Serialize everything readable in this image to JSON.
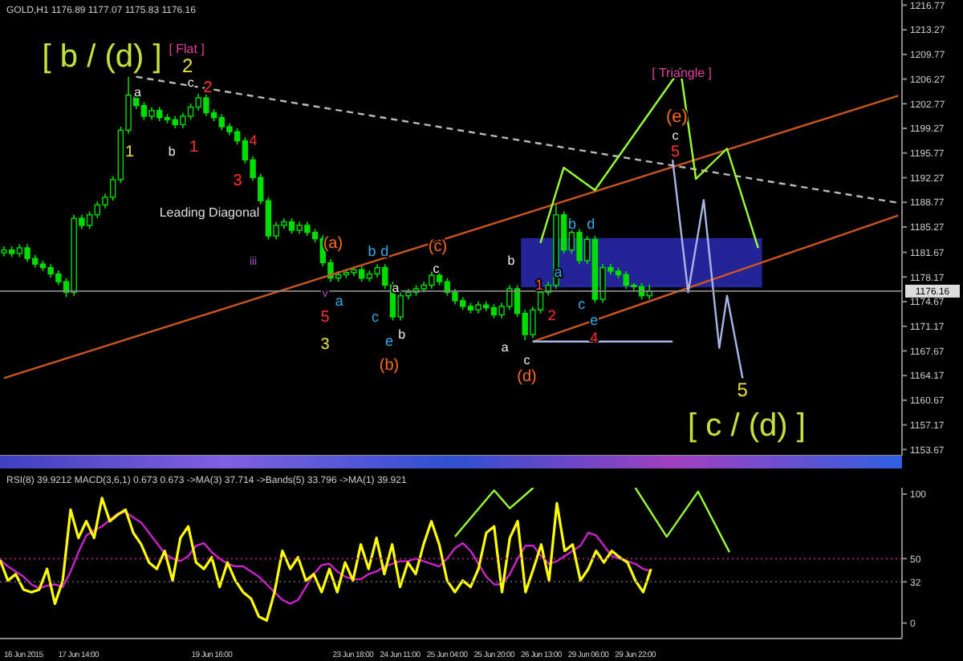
{
  "chart_data": [
    {
      "type": "candlestick",
      "title": "GOLD,H1 1176.89 1177.07 1175.83 1176.16",
      "color": "#00dd00",
      "tick_labels": "y",
      "categories": [
        null,
        null,
        null,
        null,
        null,
        null,
        null,
        null,
        null,
        null,
        null,
        null,
        null,
        null,
        null,
        null,
        null,
        null,
        null,
        null,
        null,
        null,
        null,
        null,
        null,
        null,
        null,
        null,
        null,
        null,
        null,
        null,
        null,
        null,
        null,
        null,
        null,
        null,
        null,
        null,
        null,
        null,
        null,
        null,
        null,
        null,
        null,
        null,
        null,
        null,
        null,
        null,
        null,
        null,
        null,
        null,
        null,
        null,
        null,
        null,
        null,
        null,
        null,
        null,
        null,
        null,
        null,
        null,
        null,
        null,
        null,
        null,
        null,
        null,
        null,
        null,
        null,
        null,
        null,
        null,
        null,
        null,
        null,
        null,
        null,
        null,
        null,
        null,
        null,
        null,
        null,
        null,
        null,
        null,
        null,
        null,
        null,
        null,
        null,
        null,
        null,
        null,
        null,
        null,
        null,
        null,
        null,
        null,
        null,
        null,
        null,
        null,
        null,
        null,
        null,
        null
      ],
      "ohlc": [
        [
          1181.6,
          1182.5,
          1181.1,
          1182.0
        ],
        [
          1182.0,
          1182.5,
          1181.0,
          1181.5
        ],
        [
          1181.5,
          1182.8,
          1181.0,
          1182.3
        ],
        [
          1182.3,
          1182.8,
          1180.3,
          1180.8
        ],
        [
          1180.8,
          1181.3,
          1179.5,
          1180.0
        ],
        [
          1180.0,
          1180.5,
          1179.0,
          1179.5
        ],
        [
          1179.5,
          1180.0,
          1178.1,
          1178.6
        ],
        [
          1178.6,
          1179.1,
          1177.0,
          1177.5
        ],
        [
          1177.5,
          1178.0,
          1175.3,
          1176.0
        ],
        [
          1176.0,
          1187.0,
          1175.5,
          1186.5
        ],
        [
          1186.5,
          1187.0,
          1185.0,
          1185.5
        ],
        [
          1185.5,
          1187.5,
          1185.0,
          1187.0
        ],
        [
          1187.0,
          1188.9,
          1186.5,
          1188.4
        ],
        [
          1188.4,
          1190.0,
          1187.9,
          1189.5
        ],
        [
          1189.5,
          1192.5,
          1189.0,
          1192.0
        ],
        [
          1192.0,
          1199.5,
          1191.5,
          1199.0
        ],
        [
          1199.0,
          1206.6,
          1198.5,
          1204.0
        ],
        [
          1204.0,
          1204.5,
          1202.0,
          1202.5
        ],
        [
          1202.5,
          1203.0,
          1200.5,
          1201.0
        ],
        [
          1201.0,
          1202.3,
          1200.5,
          1201.8
        ],
        [
          1201.8,
          1202.3,
          1200.3,
          1200.8
        ],
        [
          1200.8,
          1201.3,
          1200.0,
          1200.5
        ],
        [
          1200.5,
          1201.0,
          1199.3,
          1199.8
        ],
        [
          1199.8,
          1201.5,
          1199.3,
          1201.0
        ],
        [
          1201.0,
          1202.8,
          1200.5,
          1202.3
        ],
        [
          1202.3,
          1204.2,
          1201.8,
          1203.6
        ],
        [
          1203.6,
          1204.1,
          1201.0,
          1201.5
        ],
        [
          1201.5,
          1202.0,
          1200.3,
          1200.8
        ],
        [
          1200.8,
          1201.3,
          1199.0,
          1199.5
        ],
        [
          1199.5,
          1200.0,
          1198.3,
          1198.8
        ],
        [
          1198.8,
          1199.3,
          1197.0,
          1197.5
        ],
        [
          1197.5,
          1198.0,
          1194.3,
          1194.8
        ],
        [
          1194.8,
          1195.3,
          1191.8,
          1192.3
        ],
        [
          1192.3,
          1192.8,
          1188.5,
          1189.0
        ],
        [
          1189.0,
          1189.5,
          1183.5,
          1184.0
        ],
        [
          1184.0,
          1186.0,
          1183.5,
          1185.5
        ],
        [
          1185.5,
          1186.5,
          1185.0,
          1186.0
        ],
        [
          1186.0,
          1186.5,
          1184.3,
          1184.8
        ],
        [
          1184.8,
          1186.0,
          1184.3,
          1185.5
        ],
        [
          1185.5,
          1186.0,
          1184.0,
          1184.5
        ],
        [
          1184.5,
          1185.0,
          1183.1,
          1183.6
        ],
        [
          1183.6,
          1184.1,
          1179.7,
          1180.2
        ],
        [
          1180.2,
          1180.7,
          1177.5,
          1178.0
        ],
        [
          1178.0,
          1179.0,
          1177.5,
          1178.5
        ],
        [
          1178.5,
          1179.3,
          1178.0,
          1178.8
        ],
        [
          1178.8,
          1179.7,
          1178.3,
          1179.2
        ],
        [
          1179.2,
          1179.7,
          1177.5,
          1178.0
        ],
        [
          1178.0,
          1179.1,
          1177.5,
          1178.6
        ],
        [
          1178.6,
          1180.0,
          1178.1,
          1179.5
        ],
        [
          1179.5,
          1180.0,
          1176.5,
          1177.0
        ],
        [
          1177.0,
          1177.5,
          1172.0,
          1172.5
        ],
        [
          1172.5,
          1176.0,
          1172.0,
          1175.5
        ],
        [
          1175.5,
          1176.5,
          1175.0,
          1176.0
        ],
        [
          1176.0,
          1177.0,
          1175.5,
          1176.5
        ],
        [
          1176.5,
          1177.5,
          1176.0,
          1177.0
        ],
        [
          1177.0,
          1178.9,
          1176.5,
          1178.4
        ],
        [
          1178.4,
          1178.9,
          1177.0,
          1177.5
        ],
        [
          1177.5,
          1178.0,
          1175.5,
          1176.0
        ],
        [
          1176.0,
          1176.5,
          1174.3,
          1174.8
        ],
        [
          1174.8,
          1175.3,
          1173.5,
          1174.0
        ],
        [
          1174.0,
          1174.5,
          1173.0,
          1173.5
        ],
        [
          1173.5,
          1174.7,
          1173.0,
          1174.2
        ],
        [
          1174.2,
          1174.7,
          1173.3,
          1173.8
        ],
        [
          1173.8,
          1174.3,
          1172.3,
          1172.8
        ],
        [
          1172.8,
          1174.5,
          1172.3,
          1174.0
        ],
        [
          1174.0,
          1177.0,
          1173.5,
          1176.5
        ],
        [
          1176.5,
          1177.0,
          1172.5,
          1173.0
        ],
        [
          1173.0,
          1173.5,
          1169.2,
          1170.0
        ],
        [
          1170.0,
          1174.0,
          1169.5,
          1173.5
        ],
        [
          1173.5,
          1176.5,
          1173.0,
          1176.0
        ],
        [
          1176.0,
          1177.5,
          1175.5,
          1177.0
        ],
        [
          1177.0,
          1188.4,
          1176.5,
          1187.0
        ],
        [
          1187.0,
          1187.5,
          1181.5,
          1182.0
        ],
        [
          1182.0,
          1185.0,
          1181.5,
          1184.5
        ],
        [
          1184.5,
          1185.0,
          1180.0,
          1180.5
        ],
        [
          1180.5,
          1184.0,
          1180.0,
          1183.5
        ],
        [
          1183.5,
          1184.0,
          1174.5,
          1175.0
        ],
        [
          1175.0,
          1180.0,
          1174.5,
          1179.5
        ],
        [
          1179.5,
          1180.0,
          1178.5,
          1179.0
        ],
        [
          1179.0,
          1179.5,
          1178.0,
          1178.5
        ],
        [
          1178.5,
          1179.0,
          1176.5,
          1177.0
        ],
        [
          1177.0,
          1177.3,
          1176.3,
          1176.8
        ],
        [
          1176.8,
          1177.3,
          1175.0,
          1175.5
        ],
        [
          1175.5,
          1177.1,
          1175.0,
          1176.16
        ],
        null,
        null,
        null,
        null,
        null,
        null,
        null,
        null,
        null,
        null,
        null,
        null,
        null,
        null,
        null,
        null,
        null,
        null,
        null,
        null,
        null,
        null,
        null,
        null,
        null,
        null,
        null,
        null,
        null,
        null,
        null,
        null
      ],
      "series": [
        {
          "type": "line",
          "color": "#cc5522",
          "values": [
            1163.8,
            null,
            null,
            null,
            null,
            null,
            null,
            null,
            null,
            null,
            null,
            null,
            null,
            null,
            null,
            null,
            null,
            null,
            null,
            null,
            null,
            null,
            null,
            null,
            null,
            null,
            null,
            null,
            null,
            null,
            null,
            null,
            null,
            null,
            null,
            null,
            null,
            null,
            null,
            null,
            null,
            null,
            null,
            null,
            null,
            null,
            null,
            null,
            null,
            null,
            null,
            null,
            null,
            null,
            null,
            null,
            null,
            null,
            null,
            null,
            null,
            null,
            null,
            null,
            null,
            null,
            null,
            null,
            null,
            null,
            null,
            null,
            null,
            null,
            null,
            null,
            null,
            null,
            null,
            null,
            null,
            null,
            null,
            null,
            null,
            null,
            null,
            null,
            null,
            null,
            null,
            null,
            null,
            null,
            null,
            null,
            null,
            null,
            null,
            null,
            null,
            null,
            null,
            null,
            null,
            null,
            null,
            null,
            null,
            null,
            null,
            null,
            null,
            null,
            null,
            1203.9
          ]
        },
        {
          "type": "line",
          "color": "#cc5522",
          "values": [
            null,
            null,
            null,
            null,
            null,
            null,
            null,
            null,
            null,
            null,
            null,
            null,
            null,
            null,
            null,
            null,
            null,
            null,
            null,
            null,
            null,
            null,
            null,
            null,
            null,
            null,
            null,
            null,
            null,
            null,
            null,
            null,
            null,
            null,
            null,
            null,
            null,
            null,
            null,
            null,
            null,
            null,
            null,
            null,
            null,
            null,
            null,
            null,
            null,
            null,
            null,
            null,
            null,
            null,
            null,
            null,
            null,
            null,
            null,
            null,
            null,
            null,
            null,
            null,
            null,
            null,
            null,
            null,
            1169.0,
            null,
            null,
            null,
            null,
            null,
            null,
            null,
            null,
            null,
            null,
            null,
            null,
            null,
            null,
            null,
            null,
            null,
            null,
            null,
            null,
            null,
            null,
            null,
            null,
            null,
            null,
            null,
            null,
            null,
            null,
            null,
            null,
            null,
            null,
            null,
            null,
            null,
            null,
            null,
            null,
            null,
            null,
            null,
            null,
            null,
            null,
            1186.9
          ]
        },
        {
          "type": "line",
          "color": "#bbbbbb",
          "line_style": "dashed",
          "values": [
            null,
            null,
            null,
            null,
            null,
            null,
            null,
            null,
            null,
            null,
            null,
            null,
            null,
            null,
            null,
            null,
            null,
            1206.6,
            null,
            null,
            null,
            null,
            null,
            null,
            null,
            null,
            null,
            null,
            null,
            null,
            null,
            null,
            null,
            null,
            null,
            null,
            null,
            null,
            null,
            null,
            null,
            null,
            null,
            null,
            null,
            null,
            null,
            null,
            null,
            null,
            null,
            null,
            null,
            null,
            null,
            null,
            null,
            null,
            null,
            null,
            null,
            null,
            null,
            null,
            null,
            null,
            null,
            null,
            null,
            null,
            null,
            null,
            null,
            null,
            null,
            null,
            null,
            null,
            null,
            null,
            null,
            null,
            null,
            null,
            null,
            null,
            null,
            null,
            null,
            null,
            null,
            null,
            null,
            null,
            null,
            null,
            null,
            null,
            null,
            null,
            null,
            null,
            null,
            null,
            null,
            null,
            null,
            null,
            null,
            null,
            null,
            null,
            null,
            null,
            null,
            1188.7
          ]
        },
        {
          "type": "line",
          "color": "#aab4e8",
          "values": [
            null,
            null,
            null,
            null,
            null,
            null,
            null,
            null,
            null,
            null,
            null,
            null,
            null,
            null,
            null,
            null,
            null,
            null,
            null,
            null,
            null,
            null,
            null,
            null,
            null,
            null,
            null,
            null,
            null,
            null,
            null,
            null,
            null,
            null,
            null,
            null,
            null,
            null,
            null,
            null,
            null,
            null,
            null,
            null,
            null,
            null,
            null,
            null,
            null,
            null,
            null,
            null,
            null,
            null,
            null,
            null,
            null,
            null,
            null,
            null,
            null,
            null,
            null,
            null,
            null,
            null,
            null,
            null,
            1169.0,
            null,
            null,
            null,
            null,
            null,
            null,
            null,
            null,
            null,
            null,
            null,
            null,
            null,
            null,
            null,
            null,
            null,
            1169.0,
            null,
            null,
            null,
            null,
            null,
            null,
            null,
            null,
            null,
            null,
            null,
            null,
            null,
            null,
            null,
            null,
            null,
            null,
            null,
            null,
            null,
            null,
            null,
            null,
            null,
            null,
            null,
            null,
            null
          ]
        },
        {
          "type": "line",
          "color": "#aab4e8",
          "values": [
            null,
            null,
            null,
            null,
            null,
            null,
            null,
            null,
            null,
            null,
            null,
            null,
            null,
            null,
            null,
            null,
            null,
            null,
            null,
            null,
            null,
            null,
            null,
            null,
            null,
            null,
            null,
            null,
            null,
            null,
            null,
            null,
            null,
            null,
            null,
            null,
            null,
            null,
            null,
            null,
            null,
            null,
            null,
            null,
            null,
            null,
            null,
            null,
            null,
            null,
            null,
            null,
            null,
            null,
            null,
            null,
            null,
            null,
            null,
            null,
            null,
            null,
            null,
            null,
            null,
            null,
            null,
            null,
            null,
            null,
            null,
            null,
            null,
            null,
            null,
            null,
            null,
            null,
            null,
            null,
            null,
            null,
            null,
            null,
            null,
            null,
            1194.8,
            null,
            1176.0,
            null,
            1189.1,
            null,
            1168.1,
            1175.5,
            null,
            1163.8,
            null,
            null,
            null,
            null,
            null,
            null,
            null,
            null,
            null,
            null,
            null,
            null,
            null,
            null,
            null,
            null,
            null,
            null,
            null,
            null
          ]
        },
        {
          "type": "line",
          "color": "#99ff33",
          "values": [
            null,
            null,
            null,
            null,
            null,
            null,
            null,
            null,
            null,
            null,
            null,
            null,
            null,
            null,
            null,
            null,
            null,
            null,
            null,
            null,
            null,
            null,
            null,
            null,
            null,
            null,
            null,
            null,
            null,
            null,
            null,
            null,
            null,
            null,
            null,
            null,
            null,
            null,
            null,
            null,
            null,
            null,
            null,
            null,
            null,
            null,
            null,
            null,
            null,
            null,
            null,
            null,
            null,
            null,
            null,
            null,
            null,
            null,
            null,
            null,
            null,
            null,
            null,
            null,
            null,
            null,
            null,
            null,
            null,
            1183.0,
            null,
            null,
            1193.7,
            null,
            null,
            null,
            1190.5,
            null,
            null,
            null,
            null,
            null,
            null,
            null,
            null,
            null,
            null,
            1207.7,
            null,
            1192.1,
            null,
            null,
            null,
            1196.4,
            null,
            null,
            null,
            1182.3,
            null,
            null,
            null,
            null,
            null,
            null,
            null,
            null,
            null,
            null,
            null,
            null,
            null,
            null,
            null,
            null,
            null,
            null
          ]
        }
      ],
      "ylim": [
        1152.8,
        1217.5
      ],
      "yticks": [
        1153.67,
        1157.17,
        1160.67,
        1164.17,
        1167.67,
        1171.17,
        1174.67,
        1178.17,
        1181.67,
        1185.27,
        1188.77,
        1192.27,
        1195.77,
        1199.27,
        1202.77,
        1206.27,
        1209.77,
        1213.27,
        1216.77
      ],
      "ref_lines": [
        {
          "axis": "y",
          "value": 1176.16,
          "label": "1176.16",
          "color": "#888888"
        }
      ],
      "bands": [
        {
          "axis": "y",
          "from": 1176.7,
          "to": 1183.7,
          "color": "#2a2ab0"
        }
      ],
      "annotations": [
        "[ b / (d) ]",
        "[ Flat ]",
        "[ Triangle ]",
        "Leading Diagonal",
        "[ c / (d) ]",
        "2",
        "c",
        "2",
        "a",
        "1",
        "b",
        "1",
        "4",
        "3",
        "(a)",
        "(c)",
        "b",
        "d",
        "a",
        "c",
        "e",
        "a",
        "b",
        "c",
        "5",
        "3",
        "(b)",
        "b",
        "a",
        "c",
        "(d)",
        "1",
        "2",
        "b",
        "d",
        "a",
        "c",
        "e",
        "4",
        "(e)",
        "c",
        "5",
        "5",
        "iii",
        "v"
      ]
    },
    {
      "type": "line",
      "title": "RSI(8) 39.9212 MACD(3,6,1) 0.673 0.673 ->MA(3) 37.714 ->Bands(5) 33.796 ->MA(1) 39.921",
      "categories": [
        null,
        null,
        null,
        "16 Jun 2015",
        null,
        null,
        null,
        null,
        null,
        null,
        "17 Jun 14:00",
        null,
        null,
        null,
        null,
        null,
        null,
        null,
        null,
        null,
        null,
        null,
        null,
        null,
        null,
        null,
        null,
        "19 Jun 16:00",
        null,
        null,
        null,
        null,
        null,
        null,
        null,
        null,
        null,
        null,
        null,
        null,
        null,
        null,
        null,
        null,
        null,
        "23 Jun 18:00",
        null,
        null,
        null,
        null,
        null,
        "24 Jun 11:00",
        null,
        null,
        null,
        null,
        null,
        "25 Jun 04:00",
        null,
        null,
        null,
        null,
        null,
        "25 Jun 20:00",
        null,
        null,
        null,
        null,
        null,
        "26 Jun 13:00",
        null,
        null,
        null,
        null,
        null,
        "29 Jun 06:00",
        null,
        null,
        null,
        null,
        null,
        "29 Jun 22:00",
        null,
        null,
        null,
        null,
        null,
        null,
        null,
        null,
        null,
        null,
        null,
        null,
        null,
        null,
        null,
        null,
        null,
        null,
        null,
        null,
        null,
        null,
        null,
        null,
        null,
        null,
        null,
        null,
        null,
        null,
        null,
        null,
        null,
        null
      ],
      "series": [
        {
          "color": "#cc22cc",
          "values": [
            49,
            44,
            40,
            36,
            30,
            27,
            29,
            30,
            28,
            40,
            55,
            68,
            72,
            75,
            80,
            85,
            86,
            82,
            78,
            70,
            62,
            54,
            50,
            48,
            52,
            60,
            62,
            55,
            50,
            46,
            44,
            44,
            40,
            36,
            30,
            24,
            18,
            15,
            18,
            28,
            38,
            45,
            46,
            40,
            36,
            34,
            34,
            38,
            40,
            44,
            46,
            48,
            48,
            50,
            48,
            46,
            44,
            50,
            58,
            62,
            56,
            46,
            36,
            30,
            30,
            38,
            50,
            60,
            60,
            52,
            46,
            48,
            52,
            56,
            60,
            70,
            68,
            60,
            52,
            50,
            48,
            46,
            42,
            40,
            null,
            null,
            null,
            null,
            null,
            null,
            null,
            null,
            null,
            null,
            null,
            null,
            null,
            null,
            null,
            null,
            null,
            null,
            null,
            null,
            null,
            null,
            null,
            null,
            null,
            null,
            null,
            null,
            null,
            null,
            null,
            null
          ]
        },
        {
          "color": "#ffff00",
          "values": [
            49,
            33,
            38,
            26,
            24,
            26,
            42,
            15,
            33,
            88,
            66,
            79,
            66,
            97,
            79,
            84,
            88,
            70,
            61,
            47,
            42,
            56,
            33,
            66,
            75,
            47,
            42,
            51,
            28,
            47,
            33,
            24,
            19,
            5,
            2,
            24,
            56,
            42,
            51,
            33,
            38,
            24,
            42,
            24,
            47,
            33,
            61,
            42,
            66,
            38,
            61,
            28,
            47,
            38,
            61,
            79,
            61,
            33,
            24,
            33,
            28,
            42,
            70,
            75,
            24,
            66,
            79,
            24,
            42,
            61,
            33,
            93,
            56,
            61,
            33,
            42,
            56,
            47,
            56,
            51,
            47,
            33,
            24,
            42,
            null,
            null,
            null,
            null,
            null,
            null,
            null,
            null,
            null,
            null,
            null,
            null,
            null,
            null,
            null,
            null,
            null,
            null,
            null,
            null,
            null,
            null,
            null,
            null,
            null,
            null,
            null,
            null,
            null,
            null,
            null,
            null
          ]
        },
        {
          "color": "#99ff33",
          "values": [
            null,
            null,
            null,
            null,
            null,
            null,
            null,
            null,
            null,
            null,
            null,
            null,
            null,
            null,
            null,
            null,
            null,
            null,
            null,
            null,
            null,
            null,
            null,
            null,
            null,
            null,
            null,
            null,
            null,
            null,
            null,
            null,
            null,
            null,
            null,
            null,
            null,
            null,
            null,
            null,
            null,
            null,
            null,
            null,
            null,
            null,
            null,
            null,
            null,
            null,
            null,
            null,
            null,
            null,
            null,
            null,
            null,
            null,
            67,
            null,
            null,
            null,
            null,
            103,
            null,
            89,
            null,
            null,
            105,
            null,
            null,
            null,
            null,
            null,
            null,
            null,
            null,
            null,
            null,
            null,
            null,
            null,
            null,
            null,
            null,
            null,
            null,
            null,
            null,
            null,
            null,
            null,
            null,
            null,
            null,
            null,
            null,
            null,
            null,
            null,
            null,
            null,
            null,
            null,
            null,
            null,
            null,
            null,
            null,
            null,
            null,
            null,
            null,
            null,
            null,
            null
          ]
        },
        {
          "color": "#99ff33",
          "values": [
            null,
            null,
            null,
            null,
            null,
            null,
            null,
            null,
            null,
            null,
            null,
            null,
            null,
            null,
            null,
            null,
            null,
            null,
            null,
            null,
            null,
            null,
            null,
            null,
            null,
            null,
            null,
            null,
            null,
            null,
            null,
            null,
            null,
            null,
            null,
            null,
            null,
            null,
            null,
            null,
            null,
            null,
            null,
            null,
            null,
            null,
            null,
            null,
            null,
            null,
            null,
            null,
            null,
            null,
            null,
            null,
            null,
            null,
            null,
            null,
            null,
            null,
            null,
            null,
            null,
            null,
            null,
            null,
            null,
            null,
            null,
            null,
            null,
            null,
            null,
            null,
            null,
            null,
            null,
            null,
            null,
            105,
            null,
            null,
            null,
            67,
            null,
            null,
            null,
            102,
            null,
            null,
            null,
            55,
            null,
            null,
            null,
            null,
            null,
            null,
            null,
            null,
            null,
            null,
            null,
            null,
            null,
            null,
            null,
            null,
            null,
            null,
            null,
            null,
            null,
            null
          ]
        }
      ],
      "ylim": [
        -12,
        105
      ],
      "yticks": [
        0,
        32,
        50,
        100
      ],
      "ref_lines": [
        {
          "axis": "y",
          "value": 50,
          "color": "#aa2288",
          "line_style": "dotted"
        },
        {
          "axis": "y",
          "value": 32,
          "color": "#666666",
          "line_style": "dotted"
        }
      ]
    }
  ]
}
